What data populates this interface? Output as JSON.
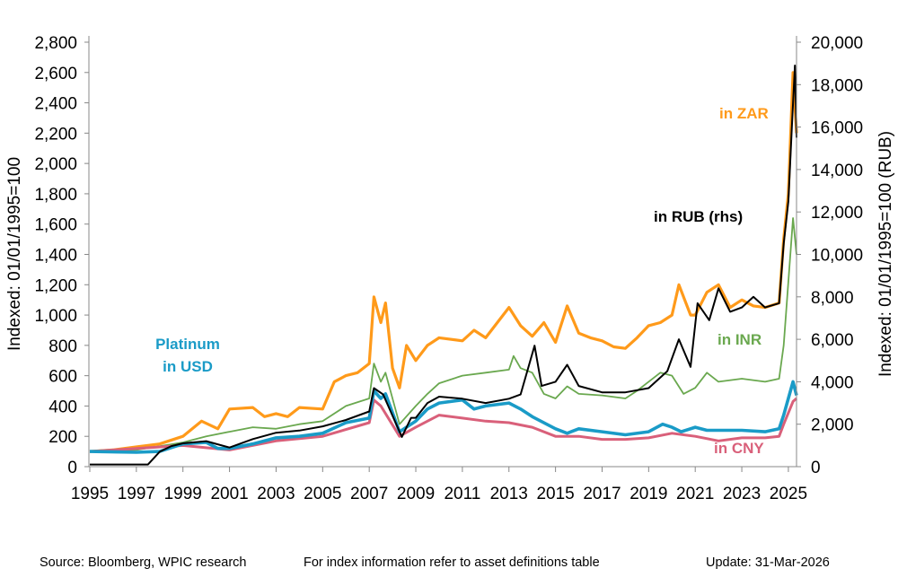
{
  "chart_data": {
    "type": "line",
    "title": "",
    "xlabel": "",
    "ylabel": "Indexed: 01/01/1995=100",
    "ylabel_right": "Indexed: 01/01/1995=100 (RUB)",
    "xlim": [
      1995,
      2025.35
    ],
    "ylim": [
      0,
      2800
    ],
    "ylim_right": [
      0,
      20000
    ],
    "x_ticks": [
      "1995",
      "1997",
      "1999",
      "2001",
      "2003",
      "2005",
      "2007",
      "2009",
      "2011",
      "2013",
      "2015",
      "2017",
      "2019",
      "2021",
      "2023",
      "2025"
    ],
    "y_ticks": [
      "0",
      "200",
      "400",
      "600",
      "800",
      "1,000",
      "1,200",
      "1,400",
      "1,600",
      "1,800",
      "2,000",
      "2,200",
      "2,400",
      "2,600",
      "2,800"
    ],
    "y_ticks_right": [
      "0",
      "2,000",
      "4,000",
      "6,000",
      "8,000",
      "10,000",
      "12,000",
      "14,000",
      "16,000",
      "18,000",
      "20,000"
    ],
    "grid": false,
    "series": [
      {
        "name": "in ZAR",
        "label": "in ZAR",
        "axis": "left",
        "color": "#FF9A1A",
        "width": 3.2,
        "x": [
          1995,
          1996,
          1997,
          1998,
          1999,
          1999.8,
          2000.5,
          2001,
          2002,
          2002.5,
          2003,
          2003.5,
          2004,
          2005,
          2005.5,
          2006,
          2006.5,
          2007,
          2007.2,
          2007.5,
          2007.7,
          2008,
          2008.3,
          2008.6,
          2009,
          2009.5,
          2010,
          2011,
          2011.5,
          2012,
          2012.5,
          2013,
          2013.5,
          2014,
          2014.5,
          2015,
          2015.5,
          2016,
          2016.5,
          2017,
          2017.5,
          2018,
          2018.5,
          2019,
          2019.5,
          2020,
          2020.3,
          2020.8,
          2021,
          2021.5,
          2022,
          2022.5,
          2023,
          2023.5,
          2024,
          2024.6,
          2024.8,
          2025,
          2025.2,
          2025.35
        ],
        "y": [
          100,
          110,
          130,
          150,
          200,
          300,
          250,
          380,
          390,
          330,
          350,
          330,
          390,
          380,
          560,
          600,
          620,
          680,
          1120,
          950,
          1080,
          650,
          520,
          800,
          700,
          800,
          850,
          830,
          900,
          850,
          950,
          1050,
          930,
          860,
          950,
          820,
          1060,
          880,
          850,
          830,
          790,
          780,
          850,
          930,
          950,
          1000,
          1200,
          1000,
          1000,
          1150,
          1200,
          1050,
          1100,
          1060,
          1050,
          1080,
          1500,
          1800,
          2600,
          2200
        ]
      },
      {
        "name": "in RUB (rhs)",
        "label": "in RUB (rhs)",
        "axis": "right",
        "color": "#000000",
        "width": 2,
        "x": [
          1995,
          1997.5,
          1998,
          1998.5,
          1999,
          2000,
          2001,
          2002,
          2003,
          2004,
          2005,
          2006,
          2007,
          2007.2,
          2007.6,
          2008.4,
          2008.8,
          2009,
          2009.5,
          2010,
          2011,
          2012,
          2013,
          2013.5,
          2014.1,
          2014.4,
          2015,
          2015.5,
          2016,
          2017,
          2018,
          2019,
          2019.8,
          2020.3,
          2020.8,
          2021.1,
          2021.6,
          2022,
          2022.5,
          2023,
          2023.5,
          2024,
          2024.6,
          2024.8,
          2025,
          2025.15,
          2025.28,
          2025.35
        ],
        "y": [
          100,
          100,
          700,
          970,
          1100,
          1200,
          900,
          1300,
          1600,
          1700,
          1900,
          2200,
          2600,
          3700,
          3400,
          1400,
          2300,
          2300,
          3000,
          3300,
          3200,
          3000,
          3200,
          3400,
          5700,
          3800,
          4000,
          4800,
          3800,
          3500,
          3500,
          3700,
          4500,
          6000,
          4700,
          7700,
          6900,
          8400,
          7300,
          7500,
          8000,
          7500,
          7700,
          10500,
          12500,
          16000,
          18900,
          15500
        ]
      },
      {
        "name": "in INR",
        "label": "in INR",
        "axis": "left",
        "color": "#6AA84F",
        "width": 1.8,
        "x": [
          1995,
          1997,
          1999,
          2000,
          2001,
          2002,
          2003,
          2004,
          2005,
          2006,
          2007,
          2007.2,
          2007.5,
          2007.7,
          2008.3,
          2009,
          2009.5,
          2010,
          2011,
          2012,
          2013,
          2013.2,
          2013.5,
          2014,
          2014.5,
          2015,
          2015.5,
          2016,
          2017,
          2018,
          2018.5,
          2019,
          2019.5,
          2020,
          2020.5,
          2021,
          2021.5,
          2022,
          2023,
          2024,
          2024.6,
          2024.8,
          2025.2,
          2025.35
        ],
        "y": [
          100,
          110,
          160,
          200,
          230,
          260,
          250,
          280,
          300,
          400,
          450,
          680,
          560,
          620,
          280,
          400,
          480,
          550,
          600,
          620,
          640,
          730,
          650,
          620,
          480,
          450,
          530,
          480,
          470,
          450,
          500,
          560,
          620,
          600,
          480,
          520,
          620,
          560,
          580,
          560,
          580,
          800,
          1640,
          1400
        ]
      },
      {
        "name": "Platinum in USD",
        "label": "Platinum in USD",
        "axis": "left",
        "color": "#1A9BC7",
        "width": 3.6,
        "x": [
          1995,
          1997,
          1998,
          1999,
          2000,
          2000.5,
          2001,
          2002,
          2003,
          2004,
          2005,
          2006,
          2007,
          2007.2,
          2007.5,
          2007.7,
          2008.3,
          2009,
          2009.5,
          2010,
          2011,
          2011.5,
          2012,
          2013,
          2013.5,
          2014,
          2015,
          2015.5,
          2016,
          2017,
          2018,
          2019,
          2019.6,
          2020,
          2020.4,
          2021,
          2021.5,
          2022,
          2023,
          2024,
          2024.6,
          2024.8,
          2025.2,
          2025.35
        ],
        "y": [
          100,
          95,
          100,
          150,
          160,
          120,
          120,
          150,
          190,
          200,
          220,
          290,
          320,
          500,
          450,
          480,
          230,
          300,
          380,
          420,
          440,
          380,
          400,
          420,
          380,
          330,
          250,
          220,
          250,
          230,
          210,
          230,
          280,
          260,
          230,
          260,
          240,
          240,
          240,
          230,
          250,
          340,
          560,
          470
        ]
      },
      {
        "name": "in CNY",
        "label": "in CNY",
        "axis": "left",
        "color": "#D9607A",
        "width": 3,
        "x": [
          1995,
          1999,
          2001,
          2003,
          2005,
          2007,
          2007.2,
          2007.5,
          2008.3,
          2009,
          2010,
          2011,
          2012,
          2013,
          2014,
          2015,
          2016,
          2017,
          2018,
          2019,
          2020,
          2021,
          2022,
          2023,
          2024,
          2024.6,
          2024.8,
          2025.2,
          2025.35
        ],
        "y": [
          100,
          140,
          110,
          170,
          200,
          290,
          440,
          400,
          200,
          260,
          340,
          320,
          300,
          290,
          260,
          200,
          200,
          180,
          180,
          190,
          220,
          200,
          170,
          190,
          190,
          200,
          280,
          430,
          450
        ]
      }
    ]
  },
  "footer": {
    "source": "Source: Bloomberg, WPIC research",
    "note": "For index information refer to asset definitions table",
    "update": "Update: 31-Mar-2026"
  }
}
